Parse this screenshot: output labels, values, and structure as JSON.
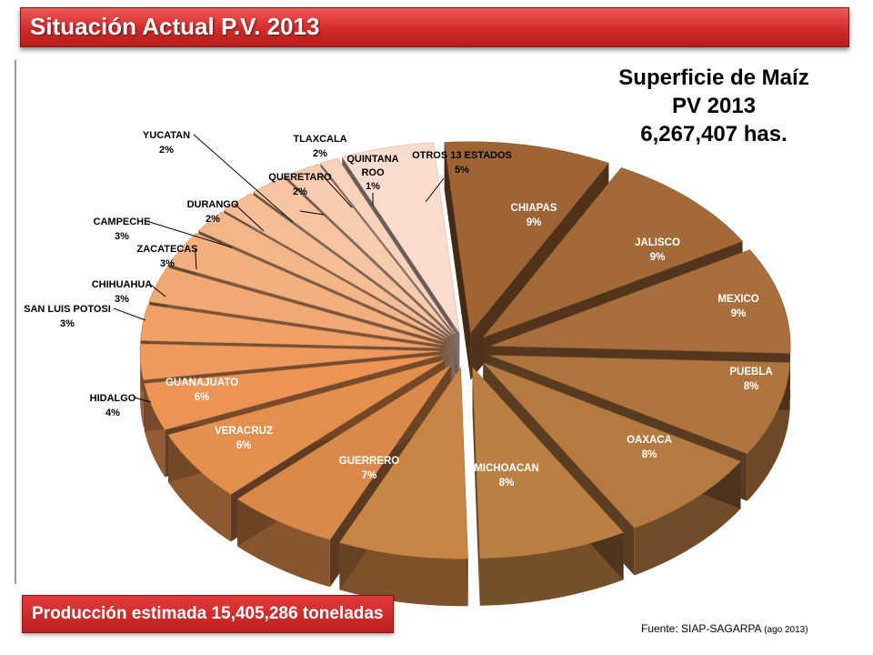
{
  "header": {
    "title": "Situación Actual P.V. 2013"
  },
  "summary": {
    "line1": "Superficie de Maíz",
    "line2": "PV 2013",
    "line3": "6,267,407 has."
  },
  "production": {
    "text": "Producción estimada  15,405,286 toneladas"
  },
  "source": {
    "label": "Fuente:",
    "text": "SIAP-SAGARPA",
    "date": "(ago 2013)"
  },
  "chart_data": {
    "type": "pie",
    "slices": [
      {
        "label": "CHIAPAS",
        "value": 9,
        "pct": "9%",
        "color": "#a06434"
      },
      {
        "label": "JALISCO",
        "value": 9,
        "pct": "9%",
        "color": "#a36a38"
      },
      {
        "label": "MEXICO",
        "value": 9,
        "pct": "9%",
        "color": "#a86e3b"
      },
      {
        "label": "PUEBLA",
        "value": 8,
        "pct": "8%",
        "color": "#b0753f"
      },
      {
        "label": "OAXACA",
        "value": 8,
        "pct": "8%",
        "color": "#b57a41"
      },
      {
        "label": "MICHOACAN",
        "value": 8,
        "pct": "8%",
        "color": "#bb7f43"
      },
      {
        "label": "GUERRERO",
        "value": 7,
        "pct": "7%",
        "color": "#c98546"
      },
      {
        "label": "VERACRUZ",
        "value": 6,
        "pct": "6%",
        "color": "#d98a4a"
      },
      {
        "label": "GUANAJUATO",
        "value": 6,
        "pct": "6%",
        "color": "#e38f4e"
      },
      {
        "label": "HIDALGO",
        "value": 4,
        "pct": "4%",
        "color": "#eb9455"
      },
      {
        "label": "SAN LUIS POTOSI",
        "value": 3,
        "pct": "3%",
        "color": "#ee9a5e"
      },
      {
        "label": "CHIHUAHUA",
        "value": 3,
        "pct": "3%",
        "color": "#f0a167"
      },
      {
        "label": "ZACATECAS",
        "value": 3,
        "pct": "3%",
        "color": "#f2a872"
      },
      {
        "label": "CAMPECHE",
        "value": 3,
        "pct": "3%",
        "color": "#f3af7d"
      },
      {
        "label": "DURANGO",
        "value": 2,
        "pct": "2%",
        "color": "#f4b689"
      },
      {
        "label": "YUCATAN",
        "value": 2,
        "pct": "2%",
        "color": "#f5bd95"
      },
      {
        "label": "QUERETARO",
        "value": 2,
        "pct": "2%",
        "color": "#f6c4a1"
      },
      {
        "label": "TLAXCALA",
        "value": 2,
        "pct": "2%",
        "color": "#f7cbae"
      },
      {
        "label": "QUINTANA ROO",
        "value": 1,
        "pct": "1%",
        "color": "#f8d2bb"
      },
      {
        "label": "OTROS 13 ESTADOS",
        "value": 5,
        "pct": "5%",
        "color": "#f9dccc"
      }
    ]
  }
}
